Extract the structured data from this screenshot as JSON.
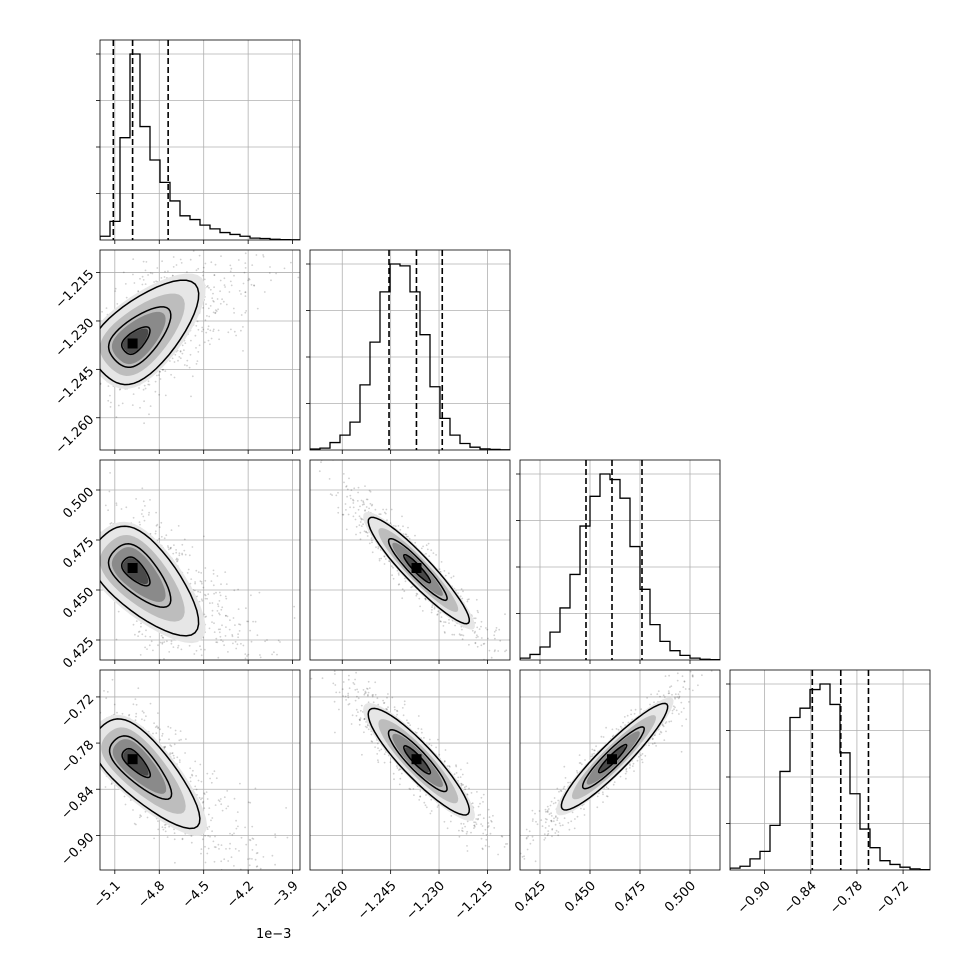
{
  "chart_data": {
    "type": "corner",
    "parameters": [
      {
        "range": [
          -5.2,
          -3.85
        ],
        "ticks": [
          -5.1,
          -4.8,
          -4.5,
          -4.2,
          -3.9
        ],
        "tick_labels": [
          "−5.1",
          "−4.8",
          "−4.5",
          "−4.2",
          "−3.9"
        ],
        "offset_text": "1e−3",
        "quantiles": [
          -5.11,
          -4.98,
          -4.74
        ]
      },
      {
        "range": [
          -1.27,
          -1.208
        ],
        "ticks": [
          -1.26,
          -1.245,
          -1.23,
          -1.215
        ],
        "tick_labels": [
          "−1.260",
          "−1.245",
          "−1.230",
          "−1.215"
        ],
        "quantiles": [
          -1.2455,
          -1.237,
          -1.229
        ]
      },
      {
        "range": [
          0.415,
          0.515
        ],
        "ticks": [
          0.425,
          0.45,
          0.475,
          0.5
        ],
        "tick_labels": [
          "0.425",
          "0.450",
          "0.475",
          "0.500"
        ],
        "quantiles": [
          0.448,
          0.461,
          0.476
        ]
      },
      {
        "range": [
          -0.945,
          -0.685
        ],
        "ticks": [
          -0.9,
          -0.84,
          -0.78,
          -0.72
        ],
        "tick_labels": [
          "−0.90",
          "−0.84",
          "−0.78",
          "−0.72"
        ],
        "quantiles": [
          -0.838,
          -0.801,
          -0.765
        ]
      }
    ],
    "histograms": [
      [
        0.02,
        0.1,
        0.55,
        1.0,
        0.61,
        0.43,
        0.31,
        0.21,
        0.13,
        0.11,
        0.08,
        0.06,
        0.04,
        0.03,
        0.02,
        0.01,
        0.008,
        0.004,
        0.002,
        0.001
      ],
      [
        0.005,
        0.01,
        0.04,
        0.08,
        0.15,
        0.35,
        0.58,
        0.85,
        1.0,
        0.99,
        0.85,
        0.62,
        0.34,
        0.17,
        0.08,
        0.035,
        0.015,
        0.006,
        0.003,
        0.001
      ],
      [
        0.01,
        0.03,
        0.07,
        0.15,
        0.28,
        0.46,
        0.72,
        0.88,
        1.0,
        0.97,
        0.87,
        0.61,
        0.38,
        0.19,
        0.1,
        0.05,
        0.025,
        0.01,
        0.004,
        0.002
      ],
      [
        0.01,
        0.02,
        0.06,
        0.1,
        0.24,
        0.53,
        0.82,
        0.87,
        0.97,
        1.0,
        0.89,
        0.63,
        0.41,
        0.22,
        0.12,
        0.05,
        0.03,
        0.015,
        0.006,
        0.002
      ]
    ],
    "correlations": {
      "1,0": 0.55,
      "2,0": -0.6,
      "2,1": -0.93,
      "3,0": -0.72,
      "3,1": -0.9,
      "3,2": 0.93
    },
    "level_scales": [
      0.5,
      1.1,
      1.9
    ],
    "grid": true
  }
}
